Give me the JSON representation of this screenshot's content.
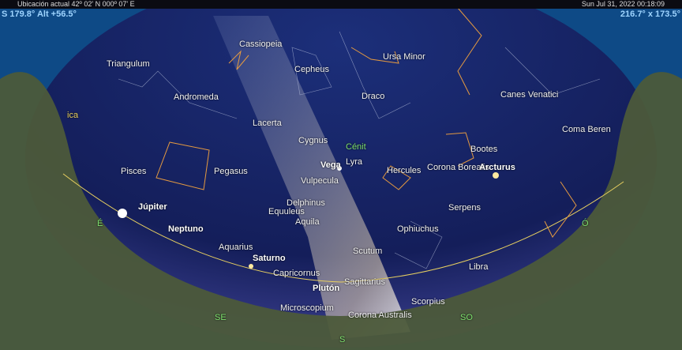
{
  "top_bar": {
    "location": "Ubicación actual  42º 02' N 000º 07' E",
    "datetime": "Sun Jul 31, 2022  00:18:09"
  },
  "view": {
    "direction": "S 179.8° Alt +56.5°",
    "field": "216.7° x 173.5°"
  },
  "constellations": [
    "Cassiopeia",
    "Triangulum",
    "Cepheus",
    "Ursa Minor",
    "Andromeda",
    "Draco",
    "Canes Venatici",
    "Lacerta",
    "Coma Beren",
    "Cygnus",
    "Lyra",
    "Hercules",
    "Corona Borealis",
    "Bootes",
    "Pisces",
    "Pegasus",
    "Vulpecula",
    "Delphinus",
    "Equuleus",
    "Serpens",
    "Aquila",
    "Ophiuchus",
    "Aquarius",
    "Scutum",
    "Capricornus",
    "Libra",
    "Sagittarius",
    "Scorpius",
    "Microscopium",
    "Corona Australis",
    "ica"
  ],
  "objects": [
    "Vega",
    "Arcturus",
    "Júpiter",
    "Neptuno",
    "Saturno",
    "Plutón"
  ],
  "markers": [
    "Cénit",
    "É",
    "Ó",
    "SE",
    "SO",
    "S"
  ]
}
